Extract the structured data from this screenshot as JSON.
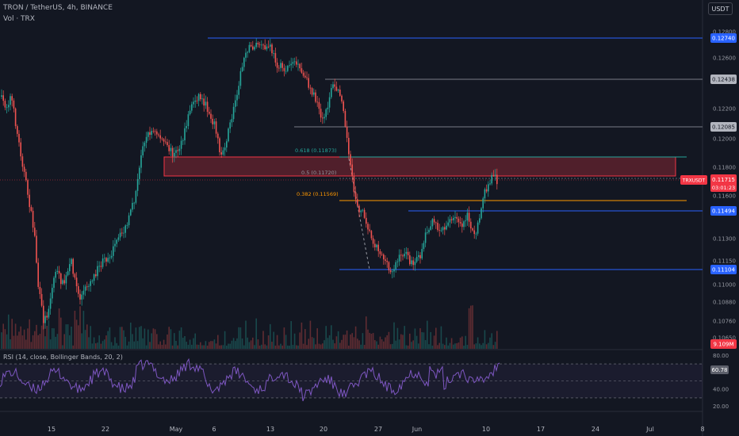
{
  "header": {
    "symbol_line": "TRON / TetherUS, 4h, BINANCE",
    "vol_line": "Vol · TRX",
    "currency_button": "USDT"
  },
  "price_axis": {
    "ticks": [
      "0.12800",
      "0.12600",
      "0.12400",
      "0.12200",
      "0.12000",
      "0.11800",
      "0.11600",
      "0.11450",
      "0.11300",
      "0.11150",
      "0.11000",
      "0.10880",
      "0.10760",
      "0.10650"
    ]
  },
  "price_tags": [
    {
      "text": "0.12740",
      "color": "#2962ff",
      "text_color": "#ffffff"
    },
    {
      "text": "0.12438",
      "color": "#b2b5be",
      "text_color": "#131722"
    },
    {
      "text": "0.12085",
      "color": "#b2b5be",
      "text_color": "#131722"
    },
    {
      "text": "0.11494",
      "color": "#2962ff",
      "text_color": "#ffffff"
    },
    {
      "text": "0.11104",
      "color": "#2962ff",
      "text_color": "#ffffff"
    },
    {
      "text": "9.109M",
      "color": "#f23645",
      "text_color": "#ffffff"
    }
  ],
  "current_price": {
    "symbol": "TRXUSDT",
    "price": "0.11715",
    "countdown": "03:01:23",
    "color": "#f23645"
  },
  "fib_levels": [
    {
      "text": "0.618 (0.11873)",
      "color": "#26a69a"
    },
    {
      "text": "0.5 (0.11720)",
      "color": "#9598a1"
    },
    {
      "text": "0.382 (0.11569)",
      "color": "#ff9800"
    }
  ],
  "rsi": {
    "label": "RSI (14, close, Bollinger Bands, 20, 2)",
    "value": "60.78",
    "ticks": [
      "80.00",
      "60.00",
      "40.00",
      "20.00"
    ]
  },
  "time_axis": {
    "labels": [
      "15",
      "22",
      "May",
      "6",
      "13",
      "20",
      "27",
      "Jun",
      "10",
      "17",
      "24",
      "Jul",
      "8"
    ]
  },
  "colors": {
    "up": "#26a69a",
    "down": "#ef5350",
    "blue_line": "#2962ff",
    "grey_line": "#787b86",
    "orange_line": "#ff9800",
    "zone": "#f23645",
    "rsi_line": "#7e57c2"
  }
}
